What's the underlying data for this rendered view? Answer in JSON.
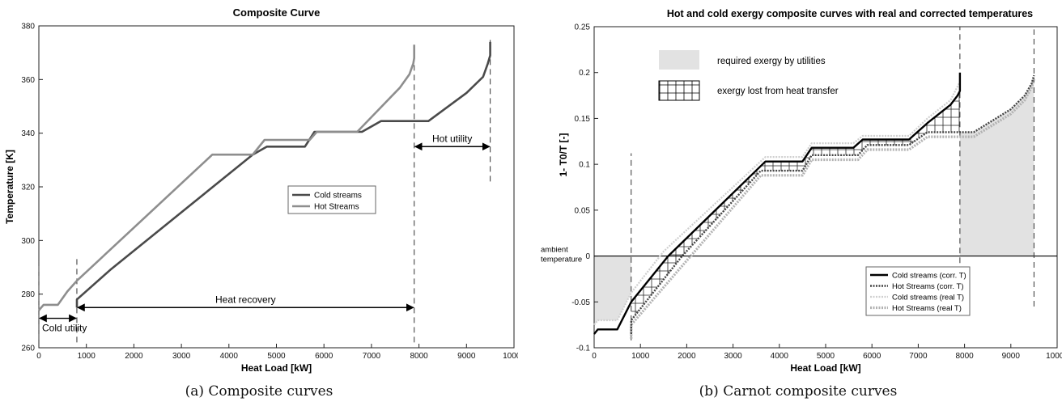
{
  "captions": {
    "a": "(a) Composite curves",
    "b": "(b) Carnot composite curves"
  },
  "chart_data": [
    {
      "type": "line",
      "title": "Composite Curve",
      "xlabel": "Heat Load [kW]",
      "ylabel": "Temperature [K]",
      "xlim": [
        0,
        10000
      ],
      "ylim": [
        260,
        380
      ],
      "xticks": [
        0,
        1000,
        2000,
        3000,
        4000,
        5000,
        6000,
        7000,
        8000,
        9000,
        10000
      ],
      "yticks": [
        260,
        280,
        300,
        320,
        340,
        360,
        380
      ],
      "grid": false,
      "legend_position": "center-right",
      "colors": {
        "cold": "#4a4a4a",
        "hot": "#8e8e8e"
      },
      "series": [
        {
          "name": "Cold streams",
          "x": [
            800,
            800,
            1500,
            4500,
            4800,
            5600,
            5800,
            6800,
            7200,
            8200,
            9000,
            9350,
            9450,
            9500,
            9500
          ],
          "y": [
            275,
            278,
            289,
            332,
            335,
            335,
            340.5,
            340.5,
            344.5,
            344.5,
            355,
            361,
            366,
            369,
            374
          ]
        },
        {
          "name": "Hot Streams",
          "x": [
            0,
            100,
            400,
            600,
            800,
            3650,
            4500,
            4750,
            5700,
            5850,
            6700,
            7600,
            7800,
            7880,
            7900,
            7900
          ],
          "y": [
            274,
            276,
            276,
            281,
            285,
            332,
            332,
            337.5,
            337.5,
            340.5,
            340.5,
            357,
            362,
            366,
            368,
            373
          ]
        }
      ],
      "annotations": [
        {
          "text": "Cold utility",
          "from": 0,
          "to": 800,
          "y": 271
        },
        {
          "text": "Heat recovery",
          "from": 800,
          "to": 7900,
          "y": 275
        },
        {
          "text": "Hot utility",
          "from": 7900,
          "to": 9500,
          "y": 335
        }
      ],
      "dashed_verticals": [
        {
          "x": 0,
          "y": [
            263,
            292
          ]
        },
        {
          "x": 800,
          "y": [
            262,
            294
          ]
        },
        {
          "x": 7900,
          "y": [
            262,
            374
          ]
        },
        {
          "x": 9500,
          "y": [
            322,
            376
          ]
        }
      ]
    },
    {
      "type": "line",
      "title": "Hot and cold exergy composite curves with real and corrected temperatures",
      "xlabel": "Heat Load [kW]",
      "ylabel": "1- T0/T [-]",
      "xlim": [
        0,
        10000
      ],
      "ylim": [
        -0.1,
        0.25
      ],
      "xticks": [
        0,
        1000,
        2000,
        3000,
        4000,
        5000,
        6000,
        7000,
        8000,
        9000,
        10000
      ],
      "yticks": [
        -0.1,
        -0.05,
        0,
        0.05,
        0.1,
        0.15,
        0.2,
        0.25
      ],
      "grid": false,
      "legend_position": "bottom-right",
      "reference_line": {
        "label": "ambient temperature",
        "y": 0
      },
      "fill_legend": [
        {
          "label": "required exergy by utilities",
          "style": "gray-fill"
        },
        {
          "label": "exergy lost from heat transfer",
          "style": "cross-hatch"
        }
      ],
      "series": [
        {
          "name": "Cold streams (corr. T)",
          "style": "solid-black",
          "x": [
            0,
            80,
            500,
            650,
            800,
            1600,
            3700,
            4500,
            4700,
            5600,
            5800,
            6800,
            7200,
            7700,
            7850,
            7900,
            7900
          ],
          "y": [
            -0.085,
            -0.08,
            -0.08,
            -0.065,
            -0.05,
            0,
            0.103,
            0.103,
            0.118,
            0.118,
            0.127,
            0.127,
            0.145,
            0.165,
            0.175,
            0.18,
            0.2
          ]
        },
        {
          "name": "Hot Streams (corr. T)",
          "style": "dotted-dark",
          "x": [
            800,
            800,
            1900,
            3600,
            4500,
            4700,
            5700,
            5900,
            6800,
            7200,
            8200,
            9000,
            9300,
            9450,
            9500
          ],
          "y": [
            -0.085,
            -0.07,
            0,
            0.093,
            0.093,
            0.11,
            0.11,
            0.121,
            0.121,
            0.135,
            0.135,
            0.16,
            0.175,
            0.188,
            0.197
          ]
        },
        {
          "name": "Cold streams (real T)",
          "style": "dotted-light",
          "x": [
            0,
            80,
            500,
            650,
            800,
            1500,
            3700,
            4500,
            4700,
            5600,
            5800,
            6800,
            7200,
            7700,
            7900
          ],
          "y": [
            -0.075,
            -0.07,
            -0.07,
            -0.055,
            -0.04,
            0.005,
            0.108,
            0.108,
            0.123,
            0.123,
            0.131,
            0.131,
            0.15,
            0.17,
            0.19
          ]
        },
        {
          "name": "Hot Streams (real T)",
          "style": "dotted-gray",
          "x": [
            800,
            800,
            2000,
            3600,
            4500,
            4700,
            5700,
            5900,
            6800,
            7200,
            8200,
            9000,
            9300,
            9450,
            9500
          ],
          "y": [
            -0.09,
            -0.075,
            -0.005,
            0.088,
            0.088,
            0.105,
            0.105,
            0.116,
            0.116,
            0.13,
            0.13,
            0.155,
            0.17,
            0.184,
            0.193
          ]
        }
      ],
      "dashed_verticals": [
        {
          "x": 800,
          "y": [
            -0.092,
            0.112
          ]
        },
        {
          "x": 7900,
          "y": [
            -0.05,
            0.25
          ]
        },
        {
          "x": 9500,
          "y": [
            -0.055,
            0.247
          ]
        }
      ]
    }
  ]
}
